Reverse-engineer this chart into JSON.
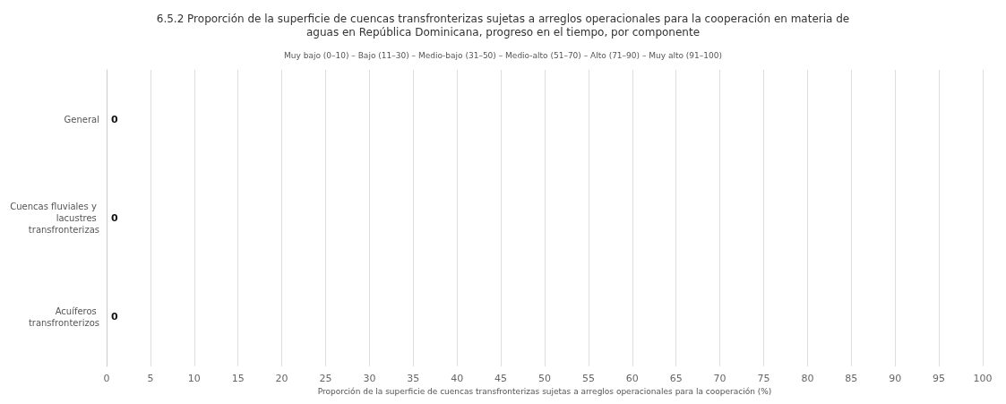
{
  "chart_data": {
    "type": "bar",
    "orientation": "horizontal",
    "title": "6.5.2 Proporción de la superficie de cuencas transfronterizas sujetas a arreglos operacionales para la cooperación en materia de\naguas en República Dominicana, progreso en el tiempo, por componente",
    "subtitle": "Muy bajo (0–10) – Bajo (11–30) – Medio-bajo (31–50) – Medio-alto (51–70) – Alto (71–90) – Muy alto (91–100)",
    "xlabel": "Proporción de la superficie de cuencas transfronterizas sujetas a arreglos operacionales para la cooperación (%)",
    "categories": [
      "General",
      "Cuencas fluviales y lacustres transfronterizas",
      "Acuíferos transfronterizos"
    ],
    "values": [
      0,
      0,
      0
    ],
    "data_labels": true,
    "grid": "x",
    "xlim": [
      0,
      100
    ],
    "xticks": [
      0,
      5,
      10,
      15,
      20,
      25,
      30,
      35,
      40,
      45,
      50,
      55,
      60,
      65,
      70,
      75,
      80,
      85,
      90,
      95,
      100
    ]
  }
}
